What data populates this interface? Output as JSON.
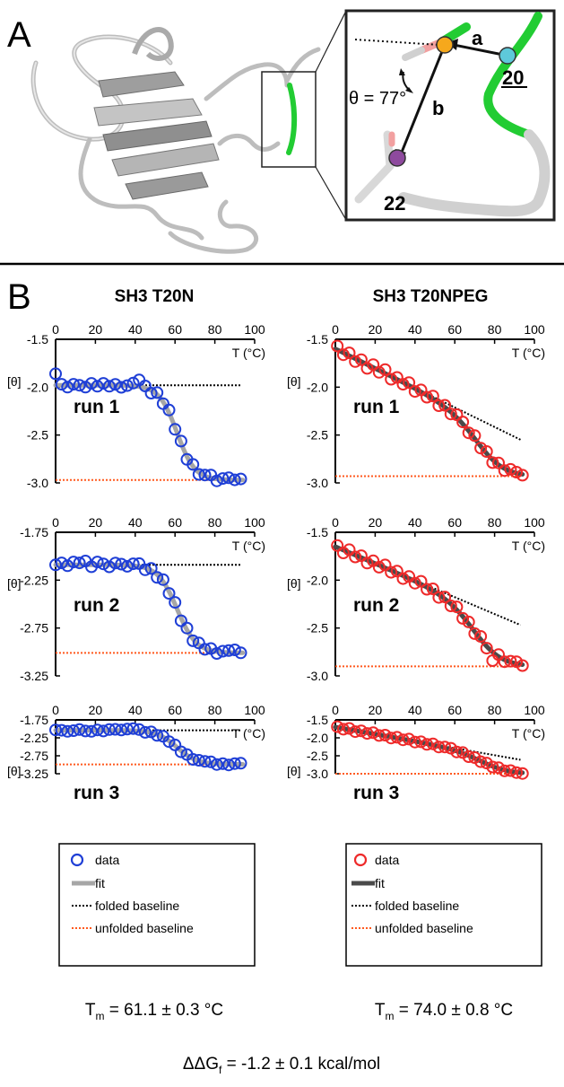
{
  "panel_a": {
    "letter": "A",
    "inset": {
      "angle_label": "θ = 77°",
      "vector_a": "a",
      "vector_b": "b",
      "residue_1": "20",
      "residue_2": "22"
    }
  },
  "panel_b": {
    "letter": "B",
    "columns": [
      {
        "title": "SH3 T20N",
        "legend": [
          "data",
          "fit",
          "folded baseline",
          "unfolded baseline"
        ],
        "tm_label": "T",
        "tm_sub": "m",
        "tm_value": " = 61.1 ± 0.3 °C"
      },
      {
        "title": "SH3 T20NPEG",
        "legend": [
          "data",
          "fit",
          "folded baseline",
          "unfolded baseline"
        ],
        "tm_label": "T",
        "tm_sub": "m",
        "tm_value": " = 74.0 ± 0.8 °C"
      }
    ],
    "summary": {
      "prefix": "ΔΔG",
      "sub": "f",
      "value": " = -1.2 ± 0.1 kcal/mol"
    }
  },
  "colors": {
    "t20n_data": "#1f3fd6",
    "t20npeg_data": "#ee2a2a",
    "fit_light": "#a6a6a6",
    "fit_dark": "#4a4a4a",
    "folded_baseline": "#000000",
    "unfolded_baseline": "#ff5a1f",
    "inset_green": "#22cc33",
    "inset_orange": "#f6a81c",
    "inset_cyan": "#5ec9da",
    "inset_purple": "#8e4a9e"
  },
  "chart_data": [
    {
      "type": "line",
      "panel": "SH3 T20N",
      "run_label": "run 1",
      "xlabel": "T (°C)",
      "ylabel": "[θ]",
      "xlim": [
        0,
        100
      ],
      "ylim": [
        -3.0,
        -1.5
      ],
      "xticks": [
        "0",
        "20",
        "40",
        "60",
        "80",
        "100"
      ],
      "yticks": [
        "-1.5",
        "-2.0",
        "-2.5",
        "-3.0"
      ],
      "folded": {
        "m": 0.0,
        "b": -1.98
      },
      "unfolded": {
        "m": 0.0,
        "b": -2.97
      },
      "Tm": 61,
      "w": 4.5,
      "data_x": [
        0,
        3,
        6,
        9,
        12,
        15,
        18,
        21,
        24,
        27,
        30,
        33,
        36,
        39,
        42,
        45,
        48,
        51,
        54,
        57,
        60,
        63,
        66,
        69,
        72,
        75,
        78,
        81,
        84,
        87,
        90,
        93
      ],
      "noise": [
        0.12,
        0.01,
        -0.02,
        0.01,
        0.0,
        -0.02,
        0.02,
        -0.01,
        0.02,
        -0.01,
        0.01,
        -0.02,
        0.0,
        0.03,
        0.07,
        0.02,
        -0.03,
        0.02,
        -0.02,
        0.03,
        -0.02,
        0.02,
        -0.03,
        0.02,
        -0.02,
        0.01,
        0.03,
        -0.02,
        0.01,
        0.02,
        0.0,
        0.01
      ],
      "series": [
        {
          "name": "data"
        },
        {
          "name": "fit"
        },
        {
          "name": "folded baseline"
        },
        {
          "name": "unfolded baseline"
        }
      ]
    },
    {
      "type": "line",
      "panel": "SH3 T20NPEG",
      "run_label": "run 1",
      "xlabel": "T (°C)",
      "ylabel": "[θ]",
      "xlim": [
        0,
        100
      ],
      "ylim": [
        -3.0,
        -1.5
      ],
      "xticks": [
        "0",
        "20",
        "40",
        "60",
        "80",
        "100"
      ],
      "yticks": [
        "-1.5",
        "-2.0",
        "-2.5",
        "-3.0"
      ],
      "folded": {
        "m": -0.0102,
        "b": -1.6
      },
      "unfolded": {
        "m": 0.0,
        "b": -2.93
      },
      "Tm": 74,
      "w": 7,
      "data_x": [
        1,
        4,
        7,
        10,
        13,
        16,
        19,
        22,
        25,
        28,
        31,
        34,
        37,
        40,
        43,
        46,
        49,
        52,
        55,
        58,
        61,
        64,
        67,
        70,
        73,
        76,
        79,
        82,
        85,
        88,
        91,
        94
      ],
      "noise": [
        0.04,
        -0.02,
        0.03,
        -0.03,
        0.02,
        -0.04,
        0.03,
        -0.02,
        0.04,
        -0.03,
        0.02,
        -0.02,
        0.03,
        -0.03,
        0.02,
        -0.02,
        0.03,
        -0.03,
        0.02,
        -0.02,
        0.03,
        0.02,
        -0.02,
        0.03,
        -0.02,
        0.02,
        -0.03,
        0.02,
        -0.02,
        0.02,
        0.01,
        -0.01
      ],
      "series": [
        {
          "name": "data"
        },
        {
          "name": "fit"
        },
        {
          "name": "folded baseline"
        },
        {
          "name": "unfolded baseline"
        }
      ]
    },
    {
      "type": "line",
      "panel": "SH3 T20N",
      "run_label": "run 2",
      "xlabel": "T (°C)",
      "ylabel": "[θ]",
      "xlim": [
        0,
        100
      ],
      "ylim": [
        -3.25,
        -1.75
      ],
      "xticks": [
        "0",
        "20",
        "40",
        "60",
        "80",
        "100"
      ],
      "yticks": [
        "-1.75",
        "-2.25",
        "-2.75",
        "-3.25"
      ],
      "folded": {
        "m": 0.0,
        "b": -2.09
      },
      "unfolded": {
        "m": 0.0,
        "b": -3.01
      },
      "Tm": 61,
      "w": 4.8,
      "data_x": [
        0,
        3,
        6,
        9,
        12,
        15,
        18,
        21,
        24,
        27,
        30,
        33,
        36,
        39,
        42,
        45,
        48,
        51,
        54,
        57,
        60,
        63,
        66,
        69,
        72,
        75,
        78,
        81,
        84,
        87,
        90,
        93
      ],
      "noise": [
        0.0,
        0.02,
        -0.01,
        0.03,
        0.02,
        0.04,
        -0.02,
        0.03,
        0.01,
        -0.02,
        0.02,
        0.01,
        -0.01,
        0.02,
        0.03,
        -0.02,
        0.02,
        -0.03,
        0.02,
        -0.02,
        0.02,
        -0.03,
        0.02,
        -0.02,
        0.02,
        -0.01,
        0.02,
        -0.02,
        0.01,
        0.02,
        0.03,
        0.0
      ],
      "series": [
        {
          "name": "data"
        },
        {
          "name": "fit"
        },
        {
          "name": "folded baseline"
        },
        {
          "name": "unfolded baseline"
        }
      ]
    },
    {
      "type": "line",
      "panel": "SH3 T20NPEG",
      "run_label": "run 2",
      "xlabel": "T (°C)",
      "ylabel": "[θ]",
      "xlim": [
        0,
        100
      ],
      "ylim": [
        -3.0,
        -1.5
      ],
      "xticks": [
        "0",
        "20",
        "40",
        "60",
        "80",
        "100"
      ],
      "yticks": [
        "-1.5",
        "-2.0",
        "-2.5",
        "-3.0"
      ],
      "folded": {
        "m": -0.0088,
        "b": -1.65
      },
      "unfolded": {
        "m": 0.0,
        "b": -2.9
      },
      "Tm": 72,
      "w": 7,
      "data_x": [
        1,
        4,
        7,
        10,
        13,
        16,
        19,
        22,
        25,
        28,
        31,
        34,
        37,
        40,
        43,
        46,
        49,
        52,
        55,
        58,
        61,
        64,
        67,
        70,
        73,
        76,
        79,
        82,
        85,
        88,
        91,
        94
      ],
      "noise": [
        0.02,
        -0.03,
        0.03,
        -0.02,
        0.02,
        -0.03,
        0.02,
        -0.02,
        0.03,
        -0.02,
        0.02,
        -0.03,
        0.02,
        -0.02,
        0.03,
        -0.02,
        0.02,
        -0.03,
        0.02,
        -0.02,
        0.03,
        -0.02,
        0.02,
        -0.02,
        0.03,
        -0.02,
        -0.09,
        0.02,
        -0.02,
        0.01,
        0.02,
        -0.01
      ],
      "series": [
        {
          "name": "data"
        },
        {
          "name": "fit"
        },
        {
          "name": "folded baseline"
        },
        {
          "name": "unfolded baseline"
        }
      ]
    },
    {
      "type": "line",
      "panel": "SH3 T20N",
      "run_label": "run 3",
      "xlabel": "T (°C)",
      "ylabel": "[θ]",
      "xlim": [
        0,
        100
      ],
      "ylim": [
        -3.25,
        -1.75
      ],
      "xticks": [
        "0",
        "20",
        "40",
        "60",
        "80",
        "100"
      ],
      "yticks": [
        "-1.75",
        "-2.25",
        "-2.75",
        "-3.25"
      ],
      "folded": {
        "m": 0.0,
        "b": -2.04
      },
      "unfolded": {
        "m": 0.0,
        "b": -2.99
      },
      "Tm": 61,
      "w": 5,
      "data_x": [
        0,
        3,
        6,
        9,
        12,
        15,
        18,
        21,
        24,
        27,
        30,
        33,
        36,
        39,
        42,
        45,
        48,
        51,
        54,
        57,
        60,
        63,
        66,
        69,
        72,
        75,
        78,
        81,
        84,
        87,
        90,
        93
      ],
      "noise": [
        0.01,
        0.0,
        -0.03,
        -0.01,
        0.02,
        -0.02,
        -0.03,
        0.01,
        -0.02,
        0.02,
        0.03,
        0.01,
        0.04,
        0.06,
        0.04,
        -0.02,
        0.02,
        -0.03,
        0.02,
        -0.02,
        0.02,
        -0.03,
        0.02,
        -0.02,
        0.02,
        0.03,
        0.04,
        -0.02,
        0.01,
        -0.02,
        0.02,
        0.03
      ],
      "series": [
        {
          "name": "data"
        },
        {
          "name": "fit"
        },
        {
          "name": "folded baseline"
        },
        {
          "name": "unfolded baseline"
        }
      ]
    },
    {
      "type": "line",
      "panel": "SH3 T20NPEG",
      "run_label": "run 3",
      "xlabel": "T (°C)",
      "ylabel": "[θ]",
      "xlim": [
        0,
        100
      ],
      "ylim": [
        -3.0,
        -1.5
      ],
      "xticks": [
        "0",
        "20",
        "40",
        "60",
        "80",
        "100"
      ],
      "yticks": [
        "-1.5",
        "-2.0",
        "-2.5",
        "-3.0"
      ],
      "folded": {
        "m": -0.0098,
        "b": -1.7
      },
      "unfolded": {
        "m": 0.0,
        "b": -3.0
      },
      "Tm": 76,
      "w": 7,
      "data_x": [
        1,
        4,
        7,
        10,
        13,
        16,
        19,
        22,
        25,
        28,
        31,
        34,
        37,
        40,
        43,
        46,
        49,
        52,
        55,
        58,
        61,
        64,
        67,
        70,
        73,
        76,
        79,
        82,
        85,
        88,
        91,
        94
      ],
      "noise": [
        0.02,
        -0.02,
        0.03,
        -0.03,
        0.02,
        -0.02,
        0.03,
        -0.02,
        0.02,
        -0.03,
        0.02,
        -0.02,
        0.03,
        -0.02,
        0.02,
        -0.02,
        0.03,
        -0.02,
        0.02,
        0.03,
        -0.02,
        0.02,
        -0.03,
        0.02,
        -0.02,
        0.02,
        -0.02,
        0.02,
        -0.02,
        0.02,
        -0.01,
        -0.02
      ],
      "series": [
        {
          "name": "data"
        },
        {
          "name": "fit"
        },
        {
          "name": "folded baseline"
        },
        {
          "name": "unfolded baseline"
        }
      ]
    }
  ]
}
